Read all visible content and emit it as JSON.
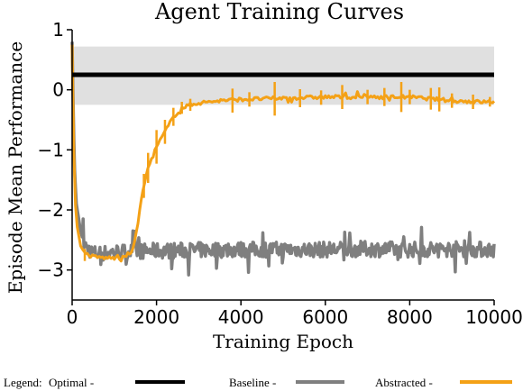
{
  "chart_data": {
    "type": "line",
    "title": "Agent Training Curves",
    "xlabel": "Training Epoch",
    "ylabel": "Episode Mean Performance",
    "xlim": [
      0,
      10000
    ],
    "ylim": [
      -3.5,
      1
    ],
    "xticks": [
      0,
      2000,
      4000,
      6000,
      8000,
      10000
    ],
    "xtick_labels": [
      "0",
      "2000",
      "4000",
      "6000",
      "8000",
      "10000"
    ],
    "yticks": [
      1,
      0,
      -1,
      -2,
      -3
    ],
    "ytick_labels": [
      "1",
      "0",
      "−1",
      "−2",
      "−3"
    ],
    "grid": false,
    "optimal_band": {
      "low": -0.25,
      "high": 0.72
    },
    "series": [
      {
        "key": "optimal",
        "color": "#000000",
        "line_width": 5,
        "x": [
          0,
          10000
        ],
        "y": [
          0.25,
          0.25
        ]
      },
      {
        "key": "baseline",
        "color": "#7f7f7f",
        "line_width": 3.5,
        "noise_amplitude": 0.13,
        "x": [
          0,
          50,
          100,
          200,
          300,
          500,
          800,
          1000,
          2000,
          3000,
          4000,
          5000,
          6000,
          7000,
          8000,
          9000,
          10000
        ],
        "y": [
          0.8,
          -1.2,
          -1.9,
          -2.35,
          -2.6,
          -2.72,
          -2.72,
          -2.7,
          -2.68,
          -2.67,
          -2.66,
          -2.66,
          -2.66,
          -2.65,
          -2.66,
          -2.65,
          -2.66
        ]
      },
      {
        "key": "abstracted",
        "color": "#f4a116",
        "line_width": 3,
        "noise_amplitude": 0.03,
        "x": [
          0,
          50,
          100,
          200,
          300,
          500,
          800,
          1000,
          1200,
          1400,
          1500,
          1600,
          1700,
          1800,
          2000,
          2200,
          2400,
          2600,
          2800,
          3000,
          3500,
          4000,
          5000,
          6000,
          7000,
          8000,
          8500,
          9000,
          9500,
          10000
        ],
        "y": [
          0.75,
          -1.5,
          -2.2,
          -2.6,
          -2.72,
          -2.78,
          -2.8,
          -2.8,
          -2.8,
          -2.7,
          -2.5,
          -2.0,
          -1.6,
          -1.3,
          -0.95,
          -0.7,
          -0.45,
          -0.3,
          -0.25,
          -0.22,
          -0.18,
          -0.16,
          -0.14,
          -0.12,
          -0.12,
          -0.12,
          -0.15,
          -0.18,
          -0.2,
          -0.2
        ]
      }
    ],
    "error_bars": {
      "x": [
        300,
        1700,
        1800,
        2000,
        2200,
        2400,
        2600,
        2800,
        3800,
        4200,
        4800,
        5400,
        5900,
        6400,
        7000,
        7400,
        7800,
        8000,
        8500,
        8700,
        9000,
        9500,
        9900
      ],
      "y": [
        -2.75,
        -1.6,
        -1.3,
        -0.95,
        -0.7,
        -0.45,
        -0.3,
        -0.25,
        -0.18,
        -0.16,
        -0.15,
        -0.14,
        -0.13,
        -0.12,
        -0.12,
        -0.12,
        -0.12,
        -0.12,
        -0.15,
        -0.16,
        -0.18,
        -0.2,
        -0.2
      ],
      "err": [
        0.1,
        0.2,
        0.25,
        0.28,
        0.2,
        0.15,
        0.1,
        0.1,
        0.2,
        0.12,
        0.28,
        0.15,
        0.12,
        0.2,
        0.12,
        0.15,
        0.25,
        0.12,
        0.18,
        0.2,
        0.12,
        0.12,
        0.08
      ]
    }
  },
  "legend": {
    "intro": "Legend:",
    "entries": [
      {
        "label": "Optimal -",
        "color": "#000000"
      },
      {
        "label": "Baseline -",
        "color": "#7f7f7f"
      },
      {
        "label": "Abstracted -",
        "color": "#f4a116"
      }
    ]
  }
}
